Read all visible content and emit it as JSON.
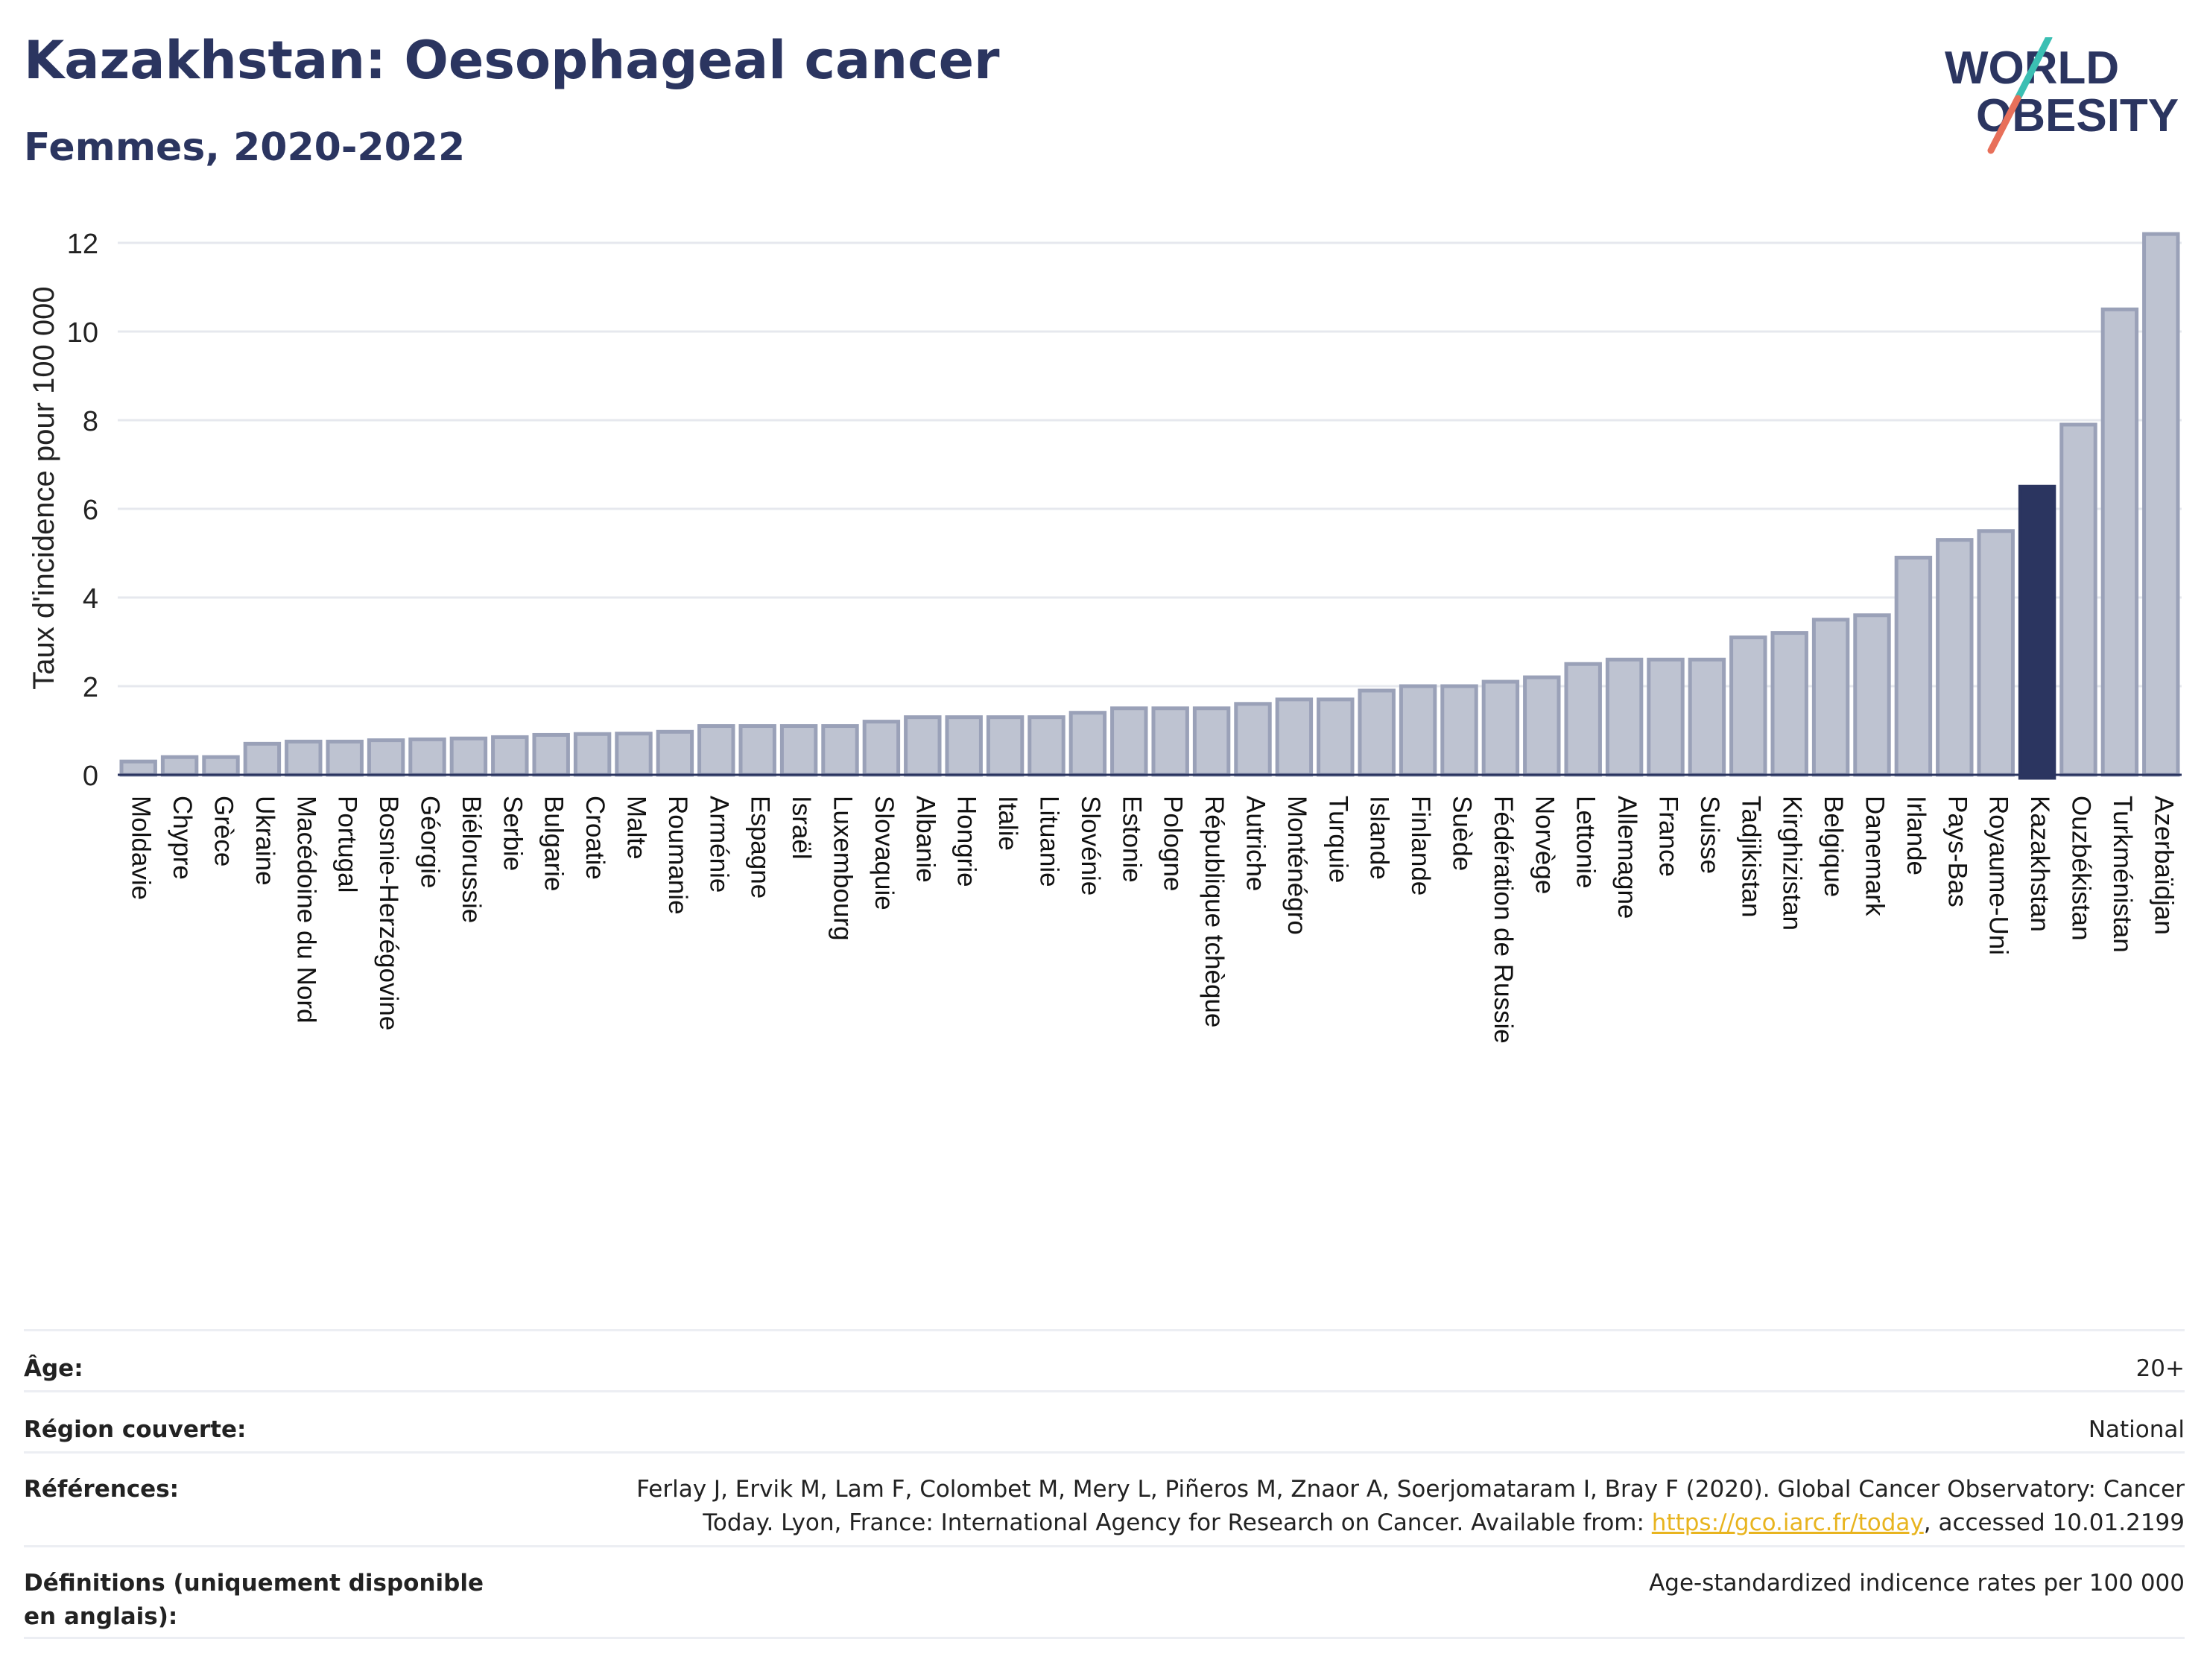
{
  "header": {
    "title": "Kazakhstan: Oesophageal cancer",
    "subtitle": "Femmes, 2020-2022"
  },
  "logo": {
    "line1": "WORLD",
    "line2": "OBESITY",
    "icon": "world-obesity-logo"
  },
  "colors": {
    "bar": "#bec3d1",
    "bar_stroke": "#9aa1b8",
    "highlight": "#2b3560",
    "grid": "#e6e8ee",
    "accent_teal": "#3bbfb3",
    "accent_coral": "#e8705a"
  },
  "chart_data": {
    "type": "bar",
    "ylabel": "Taux d'incidence pour 100 000",
    "xlabel": "",
    "ylim": [
      0,
      12.4
    ],
    "yticks": [
      0,
      2,
      4,
      6,
      8,
      10,
      12
    ],
    "grid": true,
    "highlight": "Kazakhstan",
    "categories": [
      "Moldavie",
      "Chypre",
      "Grèce",
      "Ukraine",
      "Macédoine du Nord",
      "Portugal",
      "Bosnie-Herzégovine",
      "Géorgie",
      "Biélorussie",
      "Serbie",
      "Bulgarie",
      "Croatie",
      "Malte",
      "Roumanie",
      "Arménie",
      "Espagne",
      "Israël",
      "Luxembourg",
      "Slovaquie",
      "Albanie",
      "Hongrie",
      "Italie",
      "Lituanie",
      "Slovénie",
      "Estonie",
      "Pologne",
      "République tchèque",
      "Autriche",
      "Monténégro",
      "Turquie",
      "Islande",
      "Finlande",
      "Suède",
      "Fédération de Russie",
      "Norvège",
      "Lettonie",
      "Allemagne",
      "France",
      "Suisse",
      "Tadjikistan",
      "Kirghizistan",
      "Belgique",
      "Danemark",
      "Irlande",
      "Pays-Bas",
      "Royaume-Uni",
      "Kazakhstan",
      "Ouzbékistan",
      "Turkménistan",
      "Azerbaïdjan"
    ],
    "values": [
      0.3,
      0.4,
      0.4,
      0.7,
      0.75,
      0.75,
      0.78,
      0.8,
      0.82,
      0.85,
      0.9,
      0.92,
      0.93,
      0.97,
      1.1,
      1.1,
      1.1,
      1.1,
      1.2,
      1.3,
      1.3,
      1.3,
      1.3,
      1.4,
      1.5,
      1.5,
      1.5,
      1.6,
      1.7,
      1.7,
      1.9,
      2.0,
      2.0,
      2.1,
      2.2,
      2.5,
      2.6,
      2.6,
      2.6,
      3.1,
      3.2,
      3.5,
      3.6,
      4.9,
      5.3,
      5.5,
      6.5,
      7.9,
      10.5,
      12.2
    ]
  },
  "info": {
    "age_label": "Âge:",
    "age_value": "20+",
    "region_label": "Région couverte:",
    "region_value": "National",
    "refs_label": "Références:",
    "refs_text_1": "Ferlay J, Ervik M, Lam F, Colombet M, Mery L, Piñeros M, Znaor A, Soerjomataram I, Bray F (2020). Global Cancer Observatory: Cancer Today. Lyon, France: International Agency for Research on Cancer. Available from: ",
    "refs_link": "https://gco.iarc.fr/today",
    "refs_text_2": ", accessed 10.01.2199",
    "defs_label": "Définitions (uniquement disponible en anglais):",
    "defs_value": "Age-standardized indicence rates per 100 000"
  }
}
